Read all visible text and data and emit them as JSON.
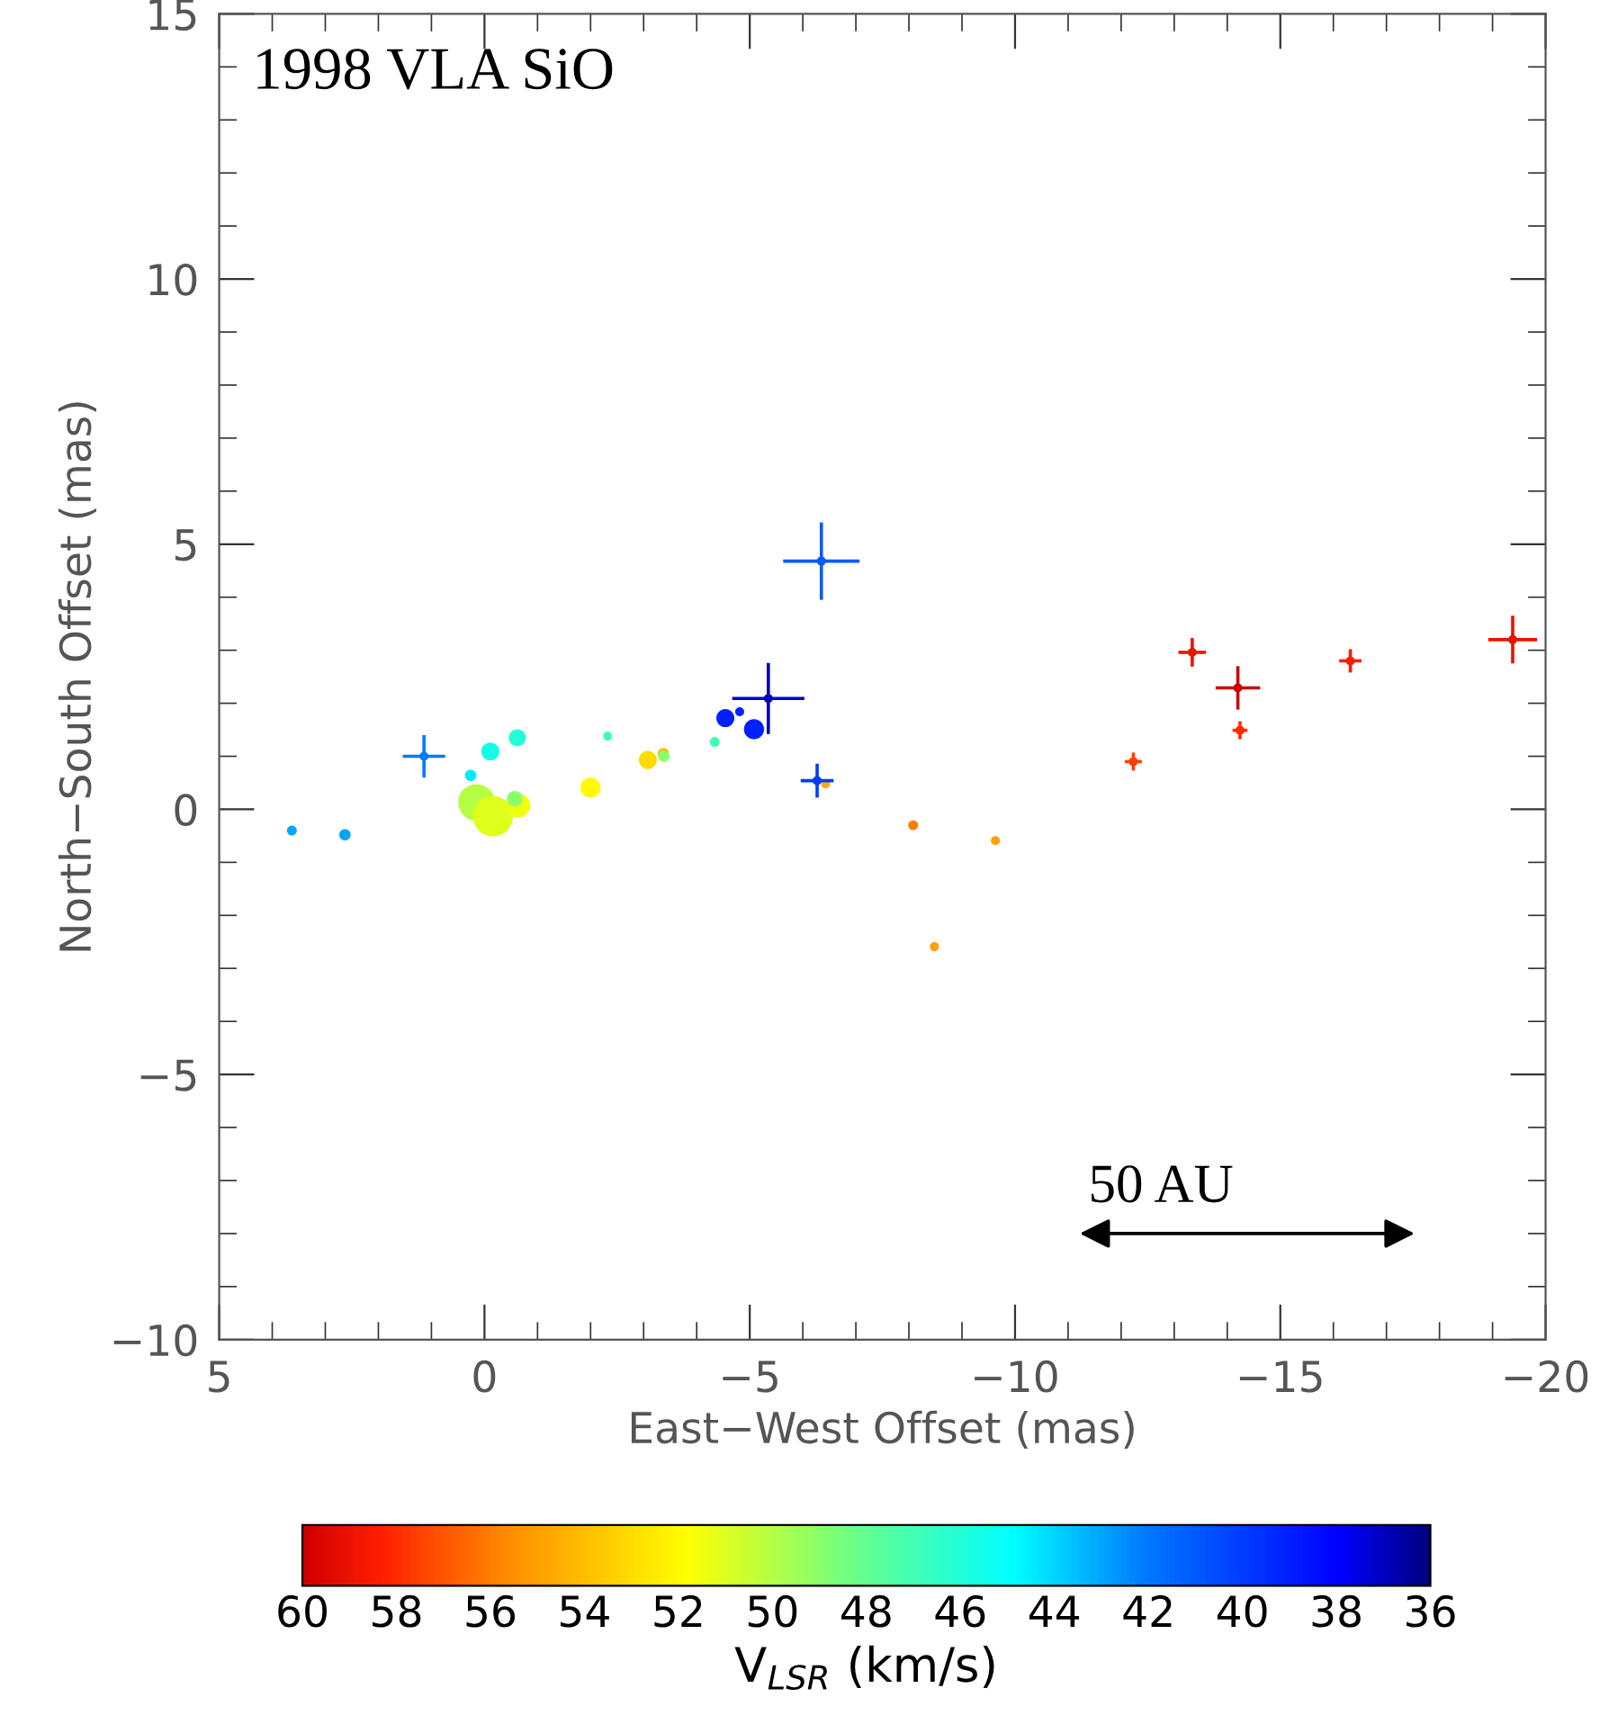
{
  "chart_data": {
    "type": "bubble",
    "xlabel": "East−West Offset (mas)",
    "ylabel": "North−South Offset (mas)",
    "clabel": "V$_{LSR}$ (km/s)",
    "annotations": [
      "1998 VLA SiO",
      "50 AU"
    ],
    "xlim": [
      5,
      -20
    ],
    "xticks": [
      5,
      0,
      -5,
      -10,
      -15,
      -20
    ],
    "ylim": [
      -10,
      15
    ],
    "yticks": [
      -10,
      -5,
      0,
      5,
      10,
      15
    ],
    "clim": [
      60,
      36
    ],
    "cticks": [
      60,
      58,
      56,
      54,
      52,
      50,
      48,
      46,
      44,
      42,
      40,
      38,
      36
    ],
    "marker": "circle",
    "grid": false,
    "legend": false,
    "x": [
      3.63,
      2.63,
      1.14,
      0.26,
      -0.11,
      -0.62,
      0.15,
      -0.16,
      -0.64,
      -0.57,
      -2.0,
      -2.32,
      -3.08,
      -3.37,
      -3.38,
      -4.34,
      -4.54,
      -4.81,
      -5.08,
      -5.35,
      -6.35,
      -6.27,
      -6.43,
      -8.08,
      -9.63,
      -8.48,
      -12.23,
      -13.34,
      -14.2,
      -14.24,
      -16.32,
      -19.38
    ],
    "values": [
      -0.4,
      -0.48,
      1.0,
      0.64,
      1.09,
      1.35,
      0.13,
      -0.13,
      0.07,
      0.2,
      0.41,
      1.38,
      0.93,
      1.05,
      1.0,
      1.27,
      1.72,
      1.84,
      1.51,
      2.09,
      4.68,
      0.54,
      0.48,
      -0.3,
      -0.59,
      -2.59,
      0.9,
      2.96,
      2.29,
      1.49,
      2.8,
      3.2
    ],
    "cvalues": [
      43,
      43,
      42,
      44.5,
      45.5,
      46,
      50,
      51,
      51.5,
      49,
      52,
      47,
      53,
      54,
      49,
      47,
      39,
      39,
      39,
      37,
      41,
      40,
      54.5,
      56,
      55,
      55,
      57.5,
      59,
      60,
      58,
      58.5,
      59
    ],
    "sizes": [
      0.06,
      0.08,
      0.05,
      0.08,
      0.2,
      0.18,
      0.83,
      1,
      0.35,
      0.15,
      0.25,
      0.05,
      0.2,
      0.08,
      0.08,
      0.06,
      0.2,
      0.05,
      0.25,
      0.05,
      0.05,
      0.05,
      0.05,
      0.06,
      0.05,
      0.05,
      0.05,
      0.05,
      0.05,
      0.05,
      0.05,
      0.05
    ],
    "errors": [
      null,
      null,
      0.4,
      null,
      null,
      null,
      null,
      null,
      null,
      null,
      null,
      null,
      null,
      null,
      null,
      null,
      null,
      null,
      null,
      0.67,
      0.73,
      0.32,
      null,
      null,
      null,
      null,
      0.17,
      0.27,
      0.41,
      0.17,
      0.22,
      0.45
    ],
    "xerrors": [
      null,
      null,
      0.4,
      null,
      null,
      null,
      null,
      null,
      null,
      null,
      null,
      null,
      null,
      null,
      null,
      null,
      null,
      null,
      null,
      0.68,
      0.72,
      0.31,
      null,
      null,
      null,
      null,
      0.16,
      0.26,
      0.42,
      0.14,
      0.21,
      0.46
    ]
  }
}
